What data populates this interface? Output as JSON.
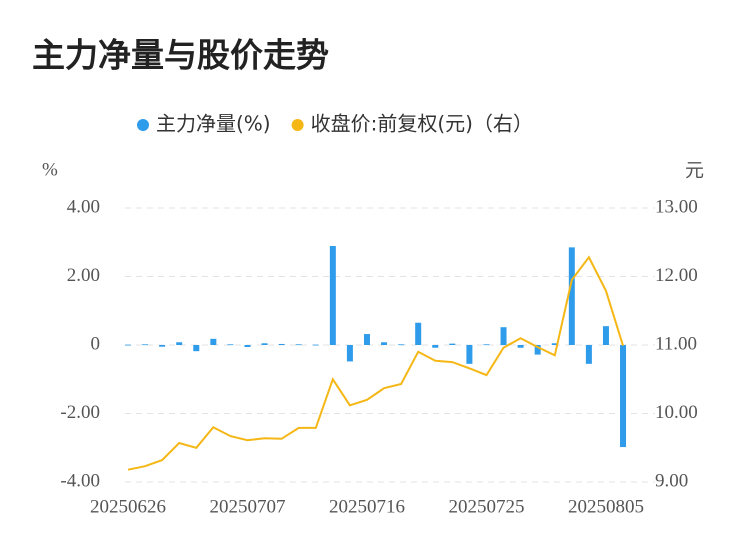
{
  "chart_data": {
    "type": "bar-line",
    "title": "主力净量与股价走势",
    "y_label": "%",
    "y2_label": "元",
    "categories": [
      "20250626",
      null,
      null,
      null,
      null,
      null,
      null,
      "20250707",
      null,
      null,
      null,
      null,
      null,
      null,
      "20250716",
      null,
      null,
      null,
      null,
      null,
      null,
      "20250725",
      null,
      null,
      null,
      null,
      null,
      null,
      "20250805",
      null
    ],
    "series": [
      {
        "name": "主力净量(%)",
        "type": "bar",
        "color": "#2e9cea",
        "values": [
          0.01,
          0.02,
          -0.05,
          0.08,
          -0.18,
          0.18,
          0.02,
          -0.06,
          0.05,
          0.03,
          0.02,
          0.01,
          2.89,
          -0.48,
          0.32,
          0.08,
          0.02,
          0.65,
          -0.08,
          0.04,
          -0.55,
          0.02,
          0.52,
          -0.08,
          -0.28,
          0.05,
          2.85,
          -0.55,
          0.55,
          -2.98
        ]
      },
      {
        "name": "收盘价:前复权(元)（右）",
        "type": "line",
        "axis": "y2",
        "color": "#f5b715",
        "values": [
          9.18,
          9.23,
          9.32,
          9.57,
          9.5,
          9.8,
          9.67,
          9.61,
          9.64,
          9.63,
          9.79,
          9.79,
          10.5,
          10.12,
          10.2,
          10.37,
          10.43,
          10.9,
          10.77,
          10.75,
          10.66,
          10.56,
          10.96,
          11.1,
          10.97,
          10.85,
          11.95,
          12.28,
          11.79,
          10.99
        ]
      }
    ],
    "ylim": [
      -4,
      4
    ],
    "yticks": [
      {
        "value": -4,
        "label": "-4.00"
      },
      {
        "value": -2,
        "label": "-2.00"
      },
      0,
      {
        "value": 2,
        "label": "2.00"
      },
      {
        "value": 4,
        "label": "4.00"
      }
    ],
    "y2lim": [
      9,
      13
    ],
    "y2ticks": [
      {
        "value": 9,
        "label": "9.00"
      },
      {
        "value": 10,
        "label": "10.00"
      },
      {
        "value": 11,
        "label": "11.00"
      },
      {
        "value": 12,
        "label": "12.00"
      },
      {
        "value": 13,
        "label": "13.00"
      }
    ],
    "grid": true
  }
}
